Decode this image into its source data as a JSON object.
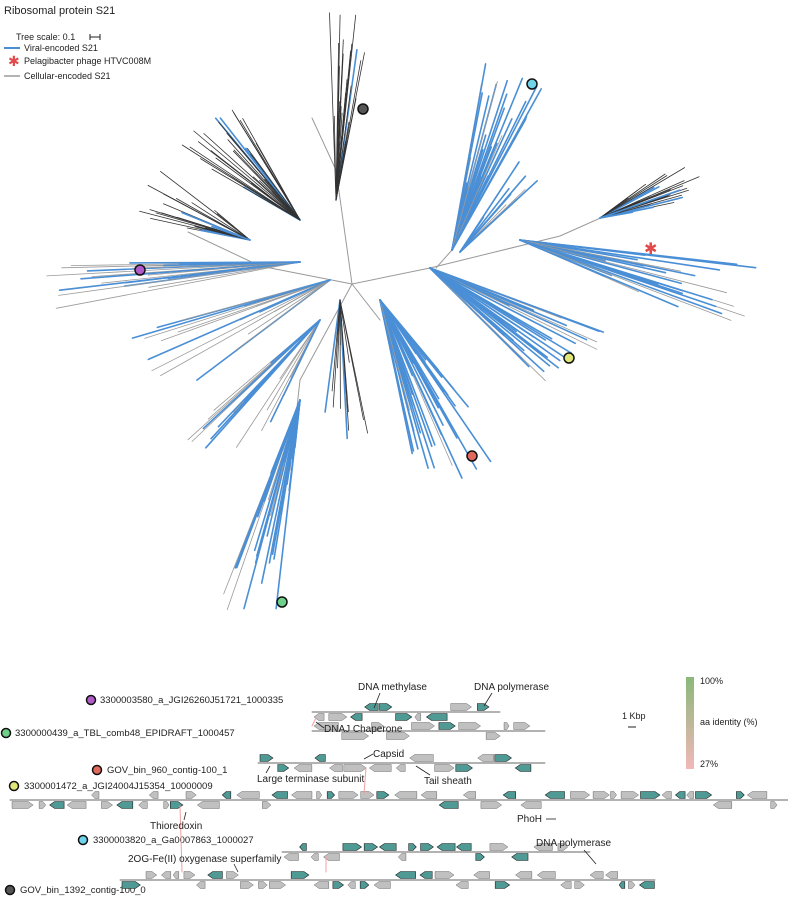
{
  "title": "Ribosomal protein S21",
  "tree_scale_label": "Tree scale: 0.1",
  "legend": [
    {
      "label": "Viral-encoded S21",
      "symbol": "line",
      "color": "#4a8fd6"
    },
    {
      "label": "Pelagibacter phage HTVC008M",
      "symbol": "asterisk",
      "color": "#e04a4a"
    },
    {
      "label": "Cellular-encoded S21",
      "symbol": "line",
      "color": "#9a9a9a"
    }
  ],
  "colors": {
    "viral": "#4a8fd6",
    "cellular": "#9a9a9a",
    "cellular_dark": "#333333",
    "gene_homolog": "#4f9a94",
    "gene_other": "#c0c0c0",
    "marker_purple": "#b05bc9",
    "marker_green": "#6fd08a",
    "marker_red": "#e0685c",
    "marker_yellow": "#dfe778",
    "marker_cyan": "#6fd4ea",
    "marker_grey": "#555555",
    "identity_high": "#8ab87a",
    "identity_low": "#f2b8b8"
  },
  "contigs": [
    {
      "name": "3300003580_a_JGI26260J51721_1000335",
      "marker": "marker_purple"
    },
    {
      "name": "3300000439_a_TBL_comb48_EPIDRAFT_1000457",
      "marker": "marker_green"
    },
    {
      "name": "GOV_bin_960_contig-100_1",
      "marker": "marker_red"
    },
    {
      "name": "3300001472_a_JGI24004J15354_10000009",
      "marker": "marker_yellow"
    },
    {
      "name": "3300003820_a_Ga0007863_1000027",
      "marker": "marker_cyan"
    },
    {
      "name": "GOV_bin_1392_contig-100_0",
      "marker": "marker_grey"
    }
  ],
  "gene_labels": [
    "DNA methylase",
    "DNA polymerase",
    "DNAJ Chaperone",
    "Capsid",
    "Large terminase subunit",
    "Tail sheath",
    "Thioredoxin",
    "PhoH",
    "DNA polymerase",
    "2OG-Fe(II) oxygenase superfamily"
  ],
  "scale_bar_label": "1 Kbp",
  "identity_legend": {
    "max": "100%",
    "min": "27%",
    "label": "aa identity (%)"
  }
}
